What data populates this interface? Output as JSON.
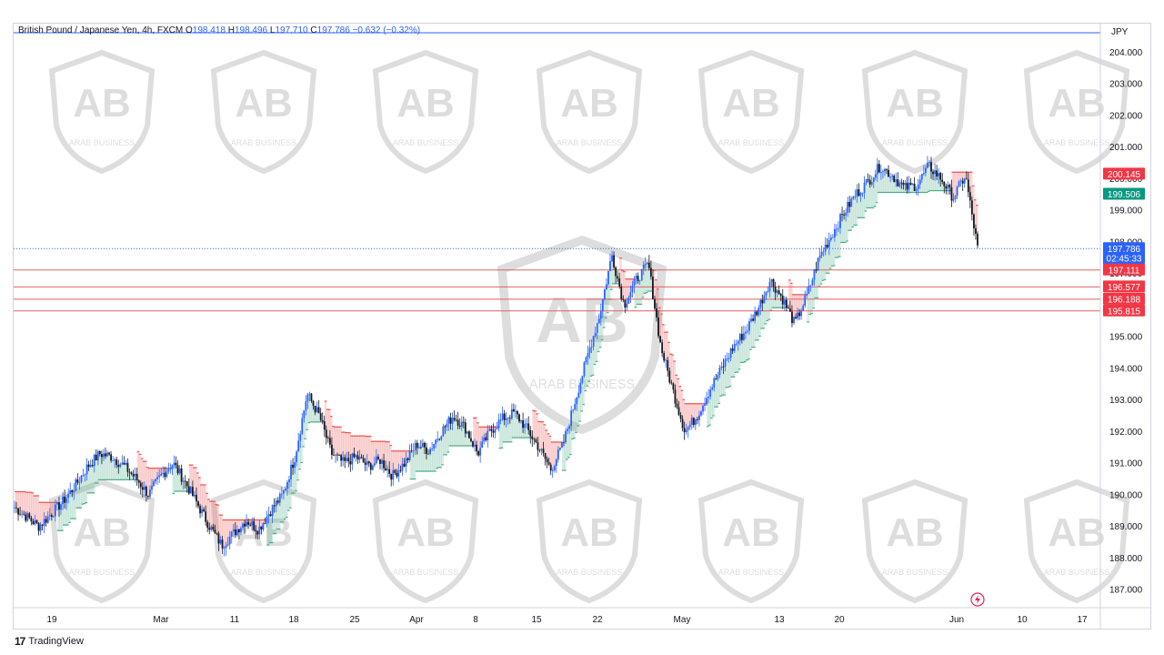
{
  "legend": {
    "symbol": "British Pound / Japanese Yen, 4h, FXCM",
    "o_label": "O",
    "o": "198.418",
    "h_label": "H",
    "h": "198.496",
    "l_label": "L",
    "l": "197.710",
    "c_label": "C",
    "c": "197.786",
    "change": "−0.632 (−0.32%)"
  },
  "currency": "JPY",
  "footer": {
    "logo": "17",
    "brand": "TradingView"
  },
  "watermark": "ARAB BUSINESS",
  "colors": {
    "up": "#2962ff",
    "down": "#131722",
    "bull_fill": "#4caf8a",
    "bear_fill": "#ef5350",
    "level_line": "#e06060",
    "last_price": "#2962ff",
    "tag_red": "#f23645",
    "tag_green": "#089981"
  },
  "chart_data": {
    "type": "candlestick",
    "x_ticks": [
      "19",
      "Mar",
      "11",
      "18",
      "25",
      "Apr",
      "8",
      "15",
      "22",
      "May",
      "13",
      "20",
      "Jun",
      "10",
      "17"
    ],
    "y_ticks": [
      "204.000",
      "203.000",
      "202.000",
      "201.000",
      "200.000",
      "199.000",
      "198.000",
      "197.000",
      "196.000",
      "195.000",
      "194.000",
      "193.000",
      "192.000",
      "191.000",
      "190.000",
      "189.000",
      "188.000",
      "187.000"
    ],
    "ylim": [
      186.6,
      204.5
    ],
    "last_price": {
      "value": 197.786,
      "label": "197.786",
      "countdown": "02:45:33"
    },
    "price_tags": [
      {
        "label": "200.145",
        "value": 200.145,
        "color": "red"
      },
      {
        "label": "199.506",
        "value": 199.506,
        "color": "green"
      }
    ],
    "levels": [
      {
        "label": "197.111",
        "value": 197.111
      },
      {
        "label": "196.577",
        "value": 196.577
      },
      {
        "label": "196.188",
        "value": 196.188
      },
      {
        "label": "195.815",
        "value": 195.815
      }
    ],
    "path": [
      [
        0,
        189.6
      ],
      [
        1,
        189.3
      ],
      [
        2,
        189.0
      ],
      [
        3,
        189.4
      ],
      [
        4,
        189.8
      ],
      [
        5,
        190.3
      ],
      [
        6,
        190.9
      ],
      [
        7,
        191.3
      ],
      [
        8,
        191.2
      ],
      [
        9,
        190.9
      ],
      [
        10,
        190.5
      ],
      [
        11,
        190.0
      ],
      [
        12,
        190.6
      ],
      [
        13,
        191.0
      ],
      [
        14,
        190.4
      ],
      [
        15,
        189.7
      ],
      [
        16,
        189.0
      ],
      [
        17,
        188.4
      ],
      [
        18,
        188.8
      ],
      [
        19,
        189.2
      ],
      [
        20,
        188.9
      ],
      [
        21,
        189.5
      ],
      [
        22,
        190.0
      ],
      [
        23,
        191.2
      ],
      [
        24,
        193.2
      ],
      [
        25,
        192.5
      ],
      [
        26,
        191.3
      ],
      [
        27,
        191.0
      ],
      [
        28,
        191.2
      ],
      [
        29,
        190.9
      ],
      [
        30,
        191.1
      ],
      [
        31,
        190.6
      ],
      [
        32,
        191.0
      ],
      [
        33,
        191.6
      ],
      [
        34,
        191.4
      ],
      [
        35,
        192.0
      ],
      [
        36,
        192.5
      ],
      [
        37,
        192.1
      ],
      [
        38,
        191.3
      ],
      [
        39,
        192.0
      ],
      [
        40,
        192.4
      ],
      [
        41,
        192.6
      ],
      [
        42,
        192.1
      ],
      [
        43,
        191.5
      ],
      [
        44,
        190.8
      ],
      [
        45,
        191.6
      ],
      [
        46,
        193.0
      ],
      [
        47,
        194.4
      ],
      [
        48,
        195.7
      ],
      [
        49,
        197.6
      ],
      [
        50,
        196.0
      ],
      [
        51,
        196.8
      ],
      [
        52,
        197.3
      ],
      [
        53,
        194.7
      ],
      [
        54,
        193.3
      ],
      [
        55,
        192.0
      ],
      [
        56,
        192.5
      ],
      [
        57,
        193.3
      ],
      [
        58,
        194.0
      ],
      [
        59,
        194.7
      ],
      [
        60,
        195.2
      ],
      [
        61,
        195.9
      ],
      [
        62,
        196.8
      ],
      [
        63,
        196.2
      ],
      [
        64,
        195.4
      ],
      [
        65,
        196.3
      ],
      [
        66,
        197.5
      ],
      [
        67,
        198.2
      ],
      [
        68,
        198.9
      ],
      [
        69,
        199.5
      ],
      [
        70,
        199.9
      ],
      [
        71,
        200.4
      ],
      [
        72,
        200.1
      ],
      [
        73,
        199.7
      ],
      [
        74,
        199.8
      ],
      [
        75,
        200.4
      ],
      [
        76,
        200.0
      ],
      [
        77,
        199.4
      ],
      [
        78,
        200.1
      ],
      [
        79,
        197.8
      ]
    ]
  }
}
